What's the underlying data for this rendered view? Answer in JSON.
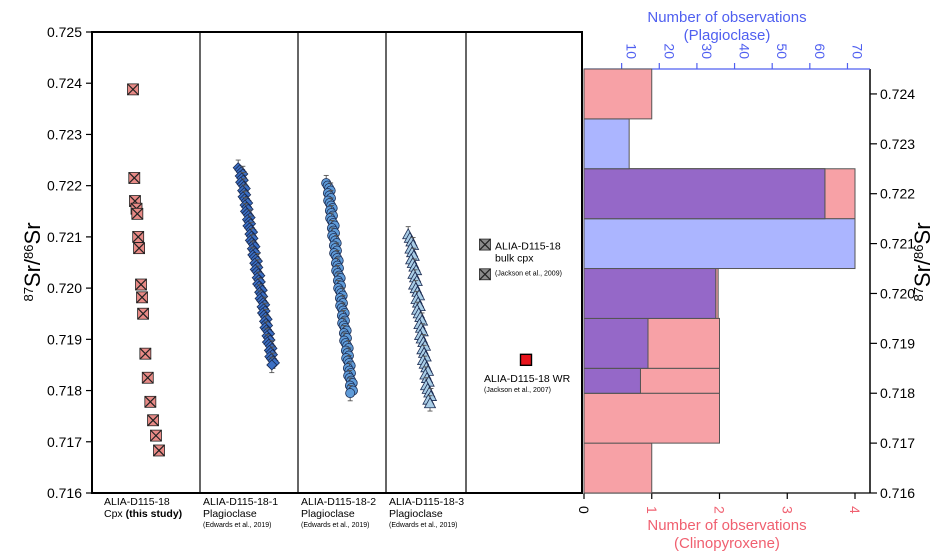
{
  "chart_data": [
    {
      "type": "scatter",
      "ylabel": {
        "pre": "87",
        "mid": "Sr/",
        "sup2": "86",
        "post": "Sr"
      },
      "ylim": [
        0.716,
        0.725
      ],
      "yticks": [
        "0.716",
        "0.717",
        "0.718",
        "0.719",
        "0.720",
        "0.721",
        "0.722",
        "0.723",
        "0.724",
        "0.725"
      ],
      "panels": [
        {
          "label_lines": [
            "ALIA-D115-18"
          ],
          "label_line2": "Cpx ",
          "label_bold": "(this study)",
          "cite": ""
        },
        {
          "label_lines": [
            "ALIA-D115-18-1",
            "Plagioclase"
          ],
          "cite": "(Edwards et al., 2019)"
        },
        {
          "label_lines": [
            "ALIA-D115-18-2",
            "Plagioclase"
          ],
          "cite": "(Edwards et al., 2019)"
        },
        {
          "label_lines": [
            "ALIA-D115-18-3",
            "Plagioclase"
          ],
          "cite": "(Edwards et al., 2019)"
        },
        {
          "label_lines": [],
          "cite": ""
        }
      ],
      "series": [
        {
          "name": "Cpx (this study)",
          "marker": "box-x",
          "color": "#e88a86",
          "y": [
            0.72388,
            0.72215,
            0.7217,
            0.72155,
            0.72145,
            0.721,
            0.72078,
            0.72007,
            0.71982,
            0.7195,
            0.71872,
            0.71825,
            0.71778,
            0.71742,
            0.71712,
            0.71683
          ],
          "x": [
            0.15,
            0.16,
            0.165,
            0.175,
            0.18,
            0.185,
            0.19,
            0.2,
            0.205,
            0.21,
            0.22,
            0.23,
            0.24,
            0.25,
            0.26,
            0.27
          ]
        },
        {
          "name": "ALIA-D115-18-1 Plagioclase",
          "marker": "diamond",
          "color": "#3b6fc4",
          "y_range": [
            0.7185,
            0.72235
          ],
          "n": 96,
          "errorbar": 0.00015
        },
        {
          "name": "ALIA-D115-18-2 Plagioclase",
          "marker": "circle",
          "color": "#5f9bd8",
          "y_range": [
            0.71795,
            0.72205
          ],
          "n": 85,
          "errorbar": 0.00015
        },
        {
          "name": "ALIA-D115-18-3 Plagioclase",
          "marker": "triangle",
          "color": "#a9cde6",
          "y_range": [
            0.71775,
            0.72105
          ],
          "n": 48,
          "errorbar": 0.00015
        }
      ],
      "reference_points": [
        {
          "name": "ALIA-D115-18 bulk cpx",
          "marker": "box-x",
          "color": "#8a8a8a",
          "y": [
            0.72085,
            0.72027
          ],
          "label_lines": [
            "ALIA-D115-18",
            "bulk cpx"
          ],
          "cite": "(Jackson et al., 2009)"
        },
        {
          "name": "ALIA-D115-18 WR",
          "marker": "square",
          "color": "#e8141c",
          "y": [
            0.7186
          ],
          "label_lines": [
            "ALIA-D115-18 WR"
          ],
          "cite": "(Jackson et al., 2007)"
        }
      ]
    },
    {
      "type": "bar",
      "orientation": "horizontal",
      "ylabel": {
        "pre": "87",
        "mid": "Sr/",
        "sup2": "86",
        "post": "Sr"
      },
      "ylim": [
        0.716,
        0.7245
      ],
      "yticks": [
        "0.716",
        "0.717",
        "0.718",
        "0.719",
        "0.720",
        "0.721",
        "0.722",
        "0.723",
        "0.724"
      ],
      "bins": [
        [
          0.716,
          0.717
        ],
        [
          0.717,
          0.718
        ],
        [
          0.718,
          0.7185
        ],
        [
          0.7185,
          0.7195
        ],
        [
          0.7195,
          0.7205
        ],
        [
          0.7205,
          0.7215
        ],
        [
          0.7215,
          0.7225
        ],
        [
          0.7225,
          0.7235
        ],
        [
          0.7235,
          0.7245
        ]
      ],
      "bottom_axis": {
        "title_lines": [
          "Number of observations",
          "(Clinopyroxene)"
        ],
        "color": "#f06070",
        "range": [
          0,
          4
        ],
        "ticks": [
          "0",
          "1",
          "2",
          "3",
          "4"
        ]
      },
      "top_axis": {
        "title_lines": [
          "Number of observations",
          "(Plagioclase)"
        ],
        "color": "#4f5ff0",
        "range": [
          0,
          72
        ],
        "ticks": [
          "10",
          "20",
          "30",
          "40",
          "50",
          "60",
          "70"
        ]
      },
      "series": [
        {
          "name": "Clinopyroxene",
          "color": "#f7a1a6",
          "axis": "bottom",
          "values": [
            1,
            2,
            2,
            2,
            1.98,
            0,
            4,
            0,
            1
          ]
        },
        {
          "name": "Plagioclase",
          "color": "#8f9cff",
          "axis": "top",
          "values": [
            0,
            0,
            15,
            17,
            35,
            72,
            64,
            12,
            0
          ]
        }
      ]
    }
  ]
}
